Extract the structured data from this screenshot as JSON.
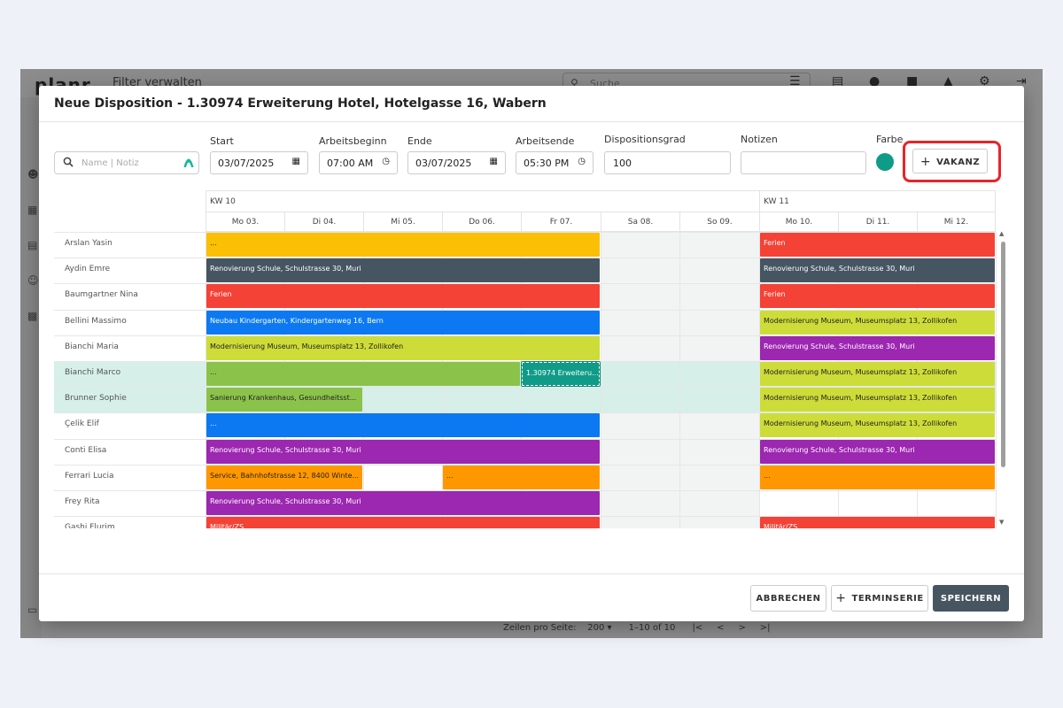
{
  "background_app": {
    "logo": "planr",
    "filter_label": "Filter verwalten",
    "search_placeholder": "Suche",
    "pager": {
      "rows_per_page_label": "Zeilen pro Seite:",
      "rows_per_page_value": "200",
      "range": "1–10 of 10"
    }
  },
  "dialog": {
    "title": "Neue Disposition - 1.30974 Erweiterung Hotel, Hotelgasse 16, Wabern",
    "search": {
      "placeholder": "Name | Notiz"
    },
    "fields": {
      "start": {
        "label": "Start",
        "value": "03/07/2025"
      },
      "arbeitsbeginn": {
        "label": "Arbeitsbeginn",
        "value": "07:00 AM"
      },
      "ende": {
        "label": "Ende",
        "value": "03/07/2025"
      },
      "arbeitsende": {
        "label": "Arbeitsende",
        "value": "05:30 PM"
      },
      "dispositionsgrad": {
        "label": "Dispositionsgrad",
        "value": "100"
      },
      "notizen": {
        "label": "Notizen",
        "value": ""
      },
      "farbe": {
        "label": "Farbe",
        "color": "#0f9b87"
      }
    },
    "vakanz_button": "VAKANZ",
    "footer": {
      "cancel": "ABBRECHEN",
      "terminserie": "TERMINSERIE",
      "save": "SPEICHERN"
    }
  },
  "calendar": {
    "weeks": [
      {
        "label": "KW 10"
      },
      {
        "label": "KW 11"
      }
    ],
    "days": [
      "Mo 03.",
      "Di 04.",
      "Mi 05.",
      "Do 06.",
      "Fr 07.",
      "Sa 08.",
      "So 09.",
      "Mo 10.",
      "Di 11.",
      "Mi 12."
    ],
    "rows": [
      {
        "name": "Arslan Yasin"
      },
      {
        "name": "Aydin Emre"
      },
      {
        "name": "Baumgartner Nina"
      },
      {
        "name": "Bellini Massimo"
      },
      {
        "name": "Bianchi Maria"
      },
      {
        "name": "Bianchi Marco"
      },
      {
        "name": "Brunner Sophie"
      },
      {
        "name": "Çelik Elif"
      },
      {
        "name": "Conti Elisa"
      },
      {
        "name": "Ferrari Lucia"
      },
      {
        "name": "Frey Rita"
      },
      {
        "name": "Gashi Flurim"
      }
    ],
    "bars": [
      {
        "text": "...",
        "color": "#fbbf06",
        "text_color": "#222"
      },
      {
        "text": "Ferien",
        "color": "#f44236",
        "text_color": "#fff"
      },
      {
        "text": "Renovierung Schule, Schulstrasse 30, Muri",
        "color": "#465562",
        "text_color": "#fff"
      },
      {
        "text": "Renovierung Schule, Schulstrasse 30, Muri",
        "color": "#465562",
        "text_color": "#fff"
      },
      {
        "text": "Ferien",
        "color": "#f44236",
        "text_color": "#fff"
      },
      {
        "text": "Ferien",
        "color": "#f44236",
        "text_color": "#fff"
      },
      {
        "text": "Neubau Kindergarten, Kindergartenweg 16, Bern",
        "color": "#0c79f2",
        "text_color": "#fff"
      },
      {
        "text": "Modernisierung Museum, Museumsplatz 13, Zollikofen",
        "color": "#cedc39",
        "text_color": "#222"
      },
      {
        "text": "Modernisierung Museum, Museumsplatz 13, Zollikofen",
        "color": "#cedc39",
        "text_color": "#222"
      },
      {
        "text": "Renovierung Schule, Schulstrasse 30, Muri",
        "color": "#9c27b0",
        "text_color": "#fff"
      },
      {
        "text": "...",
        "color": "#8bc34a",
        "text_color": "#222"
      },
      {
        "text": "1.30974 Erweiteru...",
        "color": "#0f9b87",
        "text_color": "#fff"
      },
      {
        "text": "Modernisierung Museum, Museumsplatz 13, Zollikofen",
        "color": "#cedc39",
        "text_color": "#222"
      },
      {
        "text": "Sanierung Krankenhaus, Gesundheitsst...",
        "color": "#8bc34a",
        "text_color": "#222"
      },
      {
        "text": "Modernisierung Museum, Museumsplatz 13, Zollikofen",
        "color": "#cedc39",
        "text_color": "#222"
      },
      {
        "text": "...",
        "color": "#0c79f2",
        "text_color": "#fff"
      },
      {
        "text": "Modernisierung Museum, Museumsplatz 13, Zollikofen",
        "color": "#cedc39",
        "text_color": "#222"
      },
      {
        "text": "Renovierung Schule, Schulstrasse 30, Muri",
        "color": "#9c27b0",
        "text_color": "#fff"
      },
      {
        "text": "Renovierung Schule, Schulstrasse 30, Muri",
        "color": "#9c27b0",
        "text_color": "#fff"
      },
      {
        "text": "Service, Bahnhofstrasse 12, 8400 Winte...",
        "color": "#ff9800",
        "text_color": "#222"
      },
      {
        "text": "...",
        "color": "#ff9800",
        "text_color": "#222"
      },
      {
        "text": "...",
        "color": "#ff9800",
        "text_color": "#222"
      },
      {
        "text": "Renovierung Schule, Schulstrasse 30, Muri",
        "color": "#9c27b0",
        "text_color": "#fff"
      },
      {
        "text": "Militär/ZS",
        "color": "#f44236",
        "text_color": "#fff"
      },
      {
        "text": "Militär/ZS",
        "color": "#f44236",
        "text_color": "#fff"
      }
    ]
  }
}
